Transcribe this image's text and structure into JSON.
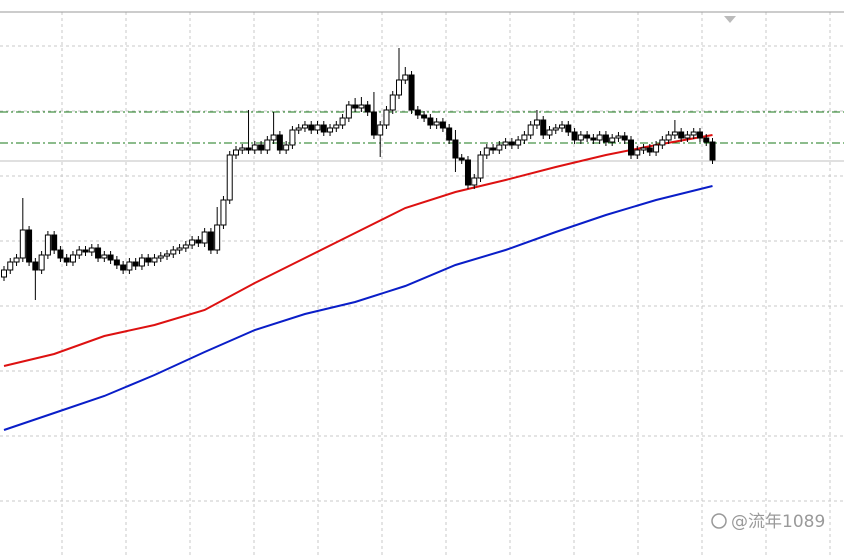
{
  "chart_data": {
    "type": "candlestick",
    "ylim": [
      0,
      557
    ],
    "open": [
      280,
      287,
      295,
      299,
      327,
      295,
      287,
      302,
      322,
      307,
      299,
      295,
      302,
      307,
      305,
      309,
      299,
      302,
      297,
      292,
      287,
      295,
      291,
      299,
      295,
      299,
      301,
      303,
      307,
      309,
      312,
      317,
      314,
      325,
      307,
      332,
      357,
      402,
      407,
      409,
      407,
      412,
      407,
      417,
      422,
      407,
      412,
      427,
      429,
      432,
      427,
      432,
      425,
      429,
      432,
      439,
      452,
      449,
      452,
      445,
      422,
      432,
      447,
      462,
      477,
      482,
      447,
      442,
      439,
      432,
      435,
      429,
      417,
      399,
      397,
      372,
      379,
      402,
      409,
      407,
      412,
      415,
      412,
      417,
      422,
      432,
      437,
      422,
      427,
      429,
      432,
      425,
      417,
      422,
      419,
      417,
      422,
      415,
      419,
      421,
      417,
      402,
      407,
      409,
      405,
      412,
      417,
      422,
      425,
      419,
      422,
      425,
      419,
      415
    ],
    "high": [
      291,
      299,
      303,
      359,
      331,
      299,
      306,
      326,
      326,
      311,
      303,
      306,
      311,
      311,
      313,
      313,
      306,
      306,
      301,
      296,
      299,
      299,
      303,
      303,
      303,
      305,
      307,
      311,
      313,
      316,
      321,
      321,
      329,
      329,
      350,
      361,
      406,
      411,
      413,
      447,
      416,
      416,
      421,
      445,
      426,
      416,
      431,
      433,
      436,
      436,
      436,
      436,
      433,
      436,
      443,
      456,
      459,
      460,
      456,
      465,
      436,
      451,
      466,
      509,
      490,
      486,
      451,
      446,
      443,
      439,
      439,
      433,
      427,
      403,
      401,
      383,
      406,
      413,
      413,
      416,
      419,
      419,
      421,
      426,
      436,
      447,
      441,
      431,
      433,
      436,
      436,
      429,
      426,
      426,
      423,
      426,
      426,
      423,
      425,
      425,
      421,
      411,
      413,
      413,
      416,
      421,
      426,
      437,
      429,
      426,
      429,
      429,
      423,
      419
    ],
    "low": [
      276,
      283,
      291,
      295,
      291,
      257,
      283,
      298,
      303,
      295,
      291,
      291,
      298,
      301,
      301,
      295,
      295,
      293,
      288,
      283,
      283,
      287,
      287,
      291,
      291,
      295,
      297,
      299,
      303,
      305,
      308,
      310,
      310,
      303,
      303,
      328,
      353,
      398,
      403,
      403,
      403,
      403,
      403,
      413,
      403,
      403,
      408,
      423,
      425,
      423,
      423,
      421,
      421,
      425,
      428,
      435,
      445,
      445,
      441,
      418,
      400,
      428,
      443,
      458,
      473,
      443,
      438,
      435,
      428,
      428,
      425,
      413,
      385,
      393,
      368,
      368,
      375,
      398,
      403,
      403,
      408,
      408,
      408,
      413,
      418,
      428,
      418,
      418,
      423,
      425,
      421,
      413,
      413,
      415,
      413,
      413,
      411,
      411,
      415,
      413,
      398,
      398,
      403,
      401,
      401,
      408,
      413,
      418,
      415,
      415,
      418,
      415,
      411,
      393
    ],
    "close": [
      287,
      295,
      299,
      327,
      295,
      287,
      302,
      322,
      307,
      299,
      295,
      302,
      307,
      305,
      309,
      299,
      302,
      297,
      292,
      287,
      295,
      291,
      299,
      295,
      299,
      301,
      303,
      307,
      309,
      312,
      317,
      314,
      325,
      307,
      332,
      357,
      402,
      407,
      409,
      407,
      412,
      407,
      417,
      422,
      407,
      412,
      427,
      429,
      432,
      427,
      432,
      425,
      429,
      432,
      439,
      452,
      449,
      452,
      445,
      422,
      432,
      447,
      462,
      477,
      482,
      447,
      442,
      439,
      432,
      435,
      429,
      417,
      399,
      397,
      372,
      379,
      402,
      409,
      407,
      412,
      415,
      412,
      417,
      422,
      432,
      437,
      422,
      427,
      429,
      432,
      425,
      417,
      422,
      419,
      417,
      422,
      415,
      419,
      421,
      417,
      402,
      407,
      409,
      405,
      412,
      417,
      422,
      425,
      419,
      422,
      425,
      419,
      415,
      397
    ],
    "moving_averages": [
      {
        "color": "#dd1111",
        "x": [
          0,
          8,
          16,
          24,
          32,
          40,
          48,
          56,
          64,
          72,
          80,
          88,
          96,
          104,
          113
        ],
        "values": [
          191,
          203,
          221,
          232,
          247,
          274,
          299,
          324,
          349,
          365,
          377,
          390,
          402,
          412,
          422
        ]
      },
      {
        "color": "#0a1ec8",
        "x": [
          0,
          8,
          16,
          24,
          32,
          40,
          48,
          56,
          64,
          72,
          80,
          88,
          96,
          104,
          113
        ],
        "values": [
          127,
          144,
          161,
          182,
          205,
          227,
          243,
          255,
          271,
          292,
          307,
          325,
          342,
          357,
          371
        ]
      }
    ],
    "levels": [
      {
        "value": 445,
        "color": "#1a7a1a"
      },
      {
        "value": 414,
        "color": "#1a7a1a"
      }
    ],
    "price_line": 396,
    "grid": true,
    "watermark": "@流年1089"
  }
}
